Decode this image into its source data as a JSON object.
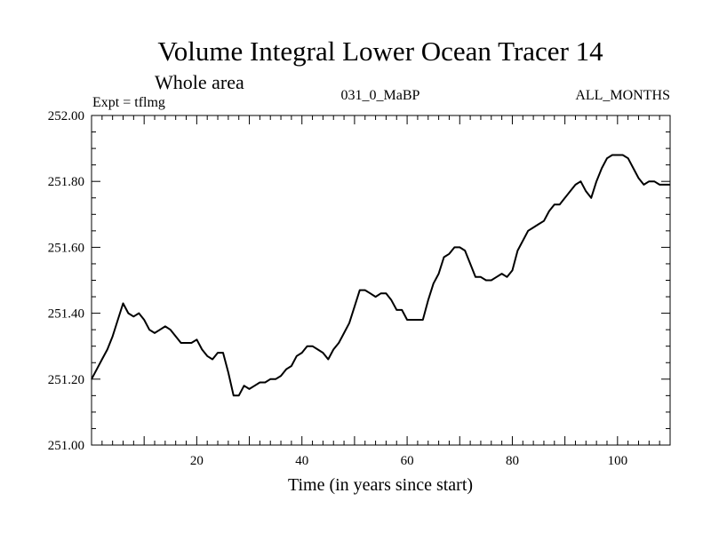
{
  "chart_data": {
    "type": "line",
    "title": "Volume Integral Lower Ocean Tracer 14",
    "subtitle": "Whole area",
    "expt_label": "Expt = tflmg",
    "center_label": "031_0_MaBP",
    "right_label": "ALL_MONTHS",
    "xlabel": "Time (in years since start)",
    "ylabel": "",
    "xlim": [
      0,
      110
    ],
    "ylim": [
      251.0,
      252.0
    ],
    "x_ticks": [
      20,
      40,
      60,
      80,
      100
    ],
    "x_tick_labels": [
      "20",
      "40",
      "60",
      "80",
      "100"
    ],
    "y_ticks": [
      251.0,
      251.2,
      251.4,
      251.6,
      251.8,
      252.0
    ],
    "y_tick_labels": [
      "251.00",
      "251.20",
      "251.40",
      "251.60",
      "251.80",
      "252.00"
    ],
    "grid": false,
    "line_color": "#000000",
    "series": [
      {
        "name": "tracer14",
        "x": [
          0,
          1,
          2,
          3,
          4,
          5,
          6,
          7,
          8,
          9,
          10,
          11,
          12,
          13,
          14,
          15,
          16,
          17,
          18,
          19,
          20,
          21,
          22,
          23,
          24,
          25,
          26,
          27,
          28,
          29,
          30,
          31,
          32,
          33,
          34,
          35,
          36,
          37,
          38,
          39,
          40,
          41,
          42,
          43,
          44,
          45,
          46,
          47,
          48,
          49,
          50,
          51,
          52,
          53,
          54,
          55,
          56,
          57,
          58,
          59,
          60,
          61,
          62,
          63,
          64,
          65,
          66,
          67,
          68,
          69,
          70,
          71,
          72,
          73,
          74,
          75,
          76,
          77,
          78,
          79,
          80,
          81,
          82,
          83,
          84,
          85,
          86,
          87,
          88,
          89,
          90,
          91,
          92,
          93,
          94,
          95,
          96,
          97,
          98,
          99,
          100,
          101,
          102,
          103,
          104,
          105,
          106,
          107,
          108,
          109,
          110
        ],
        "values": [
          251.2,
          251.23,
          251.26,
          251.29,
          251.33,
          251.38,
          251.43,
          251.4,
          251.39,
          251.4,
          251.38,
          251.35,
          251.34,
          251.35,
          251.36,
          251.35,
          251.33,
          251.31,
          251.31,
          251.31,
          251.32,
          251.29,
          251.27,
          251.26,
          251.28,
          251.28,
          251.22,
          251.15,
          251.15,
          251.18,
          251.17,
          251.18,
          251.19,
          251.19,
          251.2,
          251.2,
          251.21,
          251.23,
          251.24,
          251.27,
          251.28,
          251.3,
          251.3,
          251.29,
          251.28,
          251.26,
          251.29,
          251.31,
          251.34,
          251.37,
          251.42,
          251.47,
          251.47,
          251.46,
          251.45,
          251.46,
          251.46,
          251.44,
          251.41,
          251.41,
          251.38,
          251.38,
          251.38,
          251.38,
          251.44,
          251.49,
          251.52,
          251.57,
          251.58,
          251.6,
          251.6,
          251.59,
          251.55,
          251.51,
          251.51,
          251.5,
          251.5,
          251.51,
          251.52,
          251.51,
          251.53,
          251.59,
          251.62,
          251.65,
          251.66,
          251.67,
          251.68,
          251.71,
          251.73,
          251.73,
          251.75,
          251.77,
          251.79,
          251.8,
          251.77,
          251.75,
          251.8,
          251.84,
          251.87,
          251.88,
          251.88,
          251.88,
          251.87,
          251.84,
          251.81,
          251.79,
          251.8,
          251.8,
          251.79,
          251.79,
          251.79
        ]
      }
    ]
  }
}
